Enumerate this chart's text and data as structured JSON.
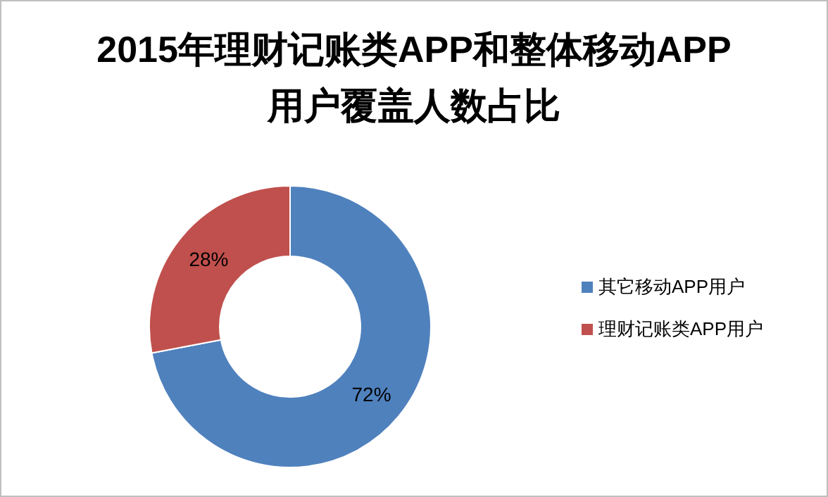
{
  "chart_data": {
    "type": "donut",
    "title": "2015年理财记账类APP和整体移动APP用户覆盖人数占比",
    "categories": [
      "其它移动APP用户",
      "理财记账类APP用户"
    ],
    "values": [
      72,
      28
    ],
    "colors": [
      "#4f81bd",
      "#c0504d"
    ],
    "value_labels": [
      "72%",
      "28%"
    ],
    "legend": "right"
  }
}
